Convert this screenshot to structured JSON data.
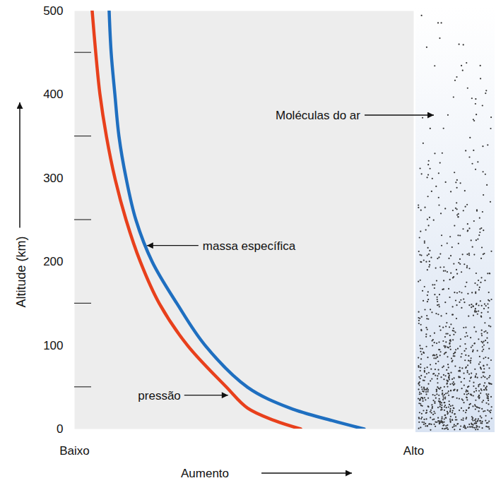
{
  "chart_data": {
    "type": "line",
    "y_label": "Altitude (km)",
    "x_label": "Aumento",
    "y": [
      0,
      10,
      25,
      50,
      100,
      150,
      200,
      250,
      300,
      350,
      400,
      450,
      500
    ],
    "series": [
      {
        "name": "pressão",
        "color": "#e8401c",
        "values": [
          0.667,
          0.59,
          0.51,
          0.448,
          0.333,
          0.25,
          0.194,
          0.152,
          0.119,
          0.094,
          0.075,
          0.0625,
          0.052
        ],
        "annotation": {
          "x": 0.46,
          "y": 40
        }
      },
      {
        "name": "massa específica",
        "color": "#1f6fc0",
        "values": [
          0.854,
          0.76,
          0.635,
          0.51,
          0.385,
          0.302,
          0.229,
          0.181,
          0.152,
          0.131,
          0.119,
          0.108,
          0.102
        ],
        "annotation": {
          "x": 0.208,
          "y": 219
        }
      }
    ],
    "xlim": [
      0,
      1
    ],
    "xticks": [
      {
        "value": 0,
        "label": "Baixo"
      },
      {
        "value": 1,
        "label": "Alto"
      }
    ],
    "ylim": [
      0,
      500
    ],
    "yticks": [
      0,
      100,
      200,
      300,
      400,
      500
    ],
    "yticks_minor": [
      50,
      150,
      250,
      350,
      450
    ],
    "grid": false,
    "molecules_label": {
      "text": "Moléculas do ar",
      "y": 375
    }
  }
}
